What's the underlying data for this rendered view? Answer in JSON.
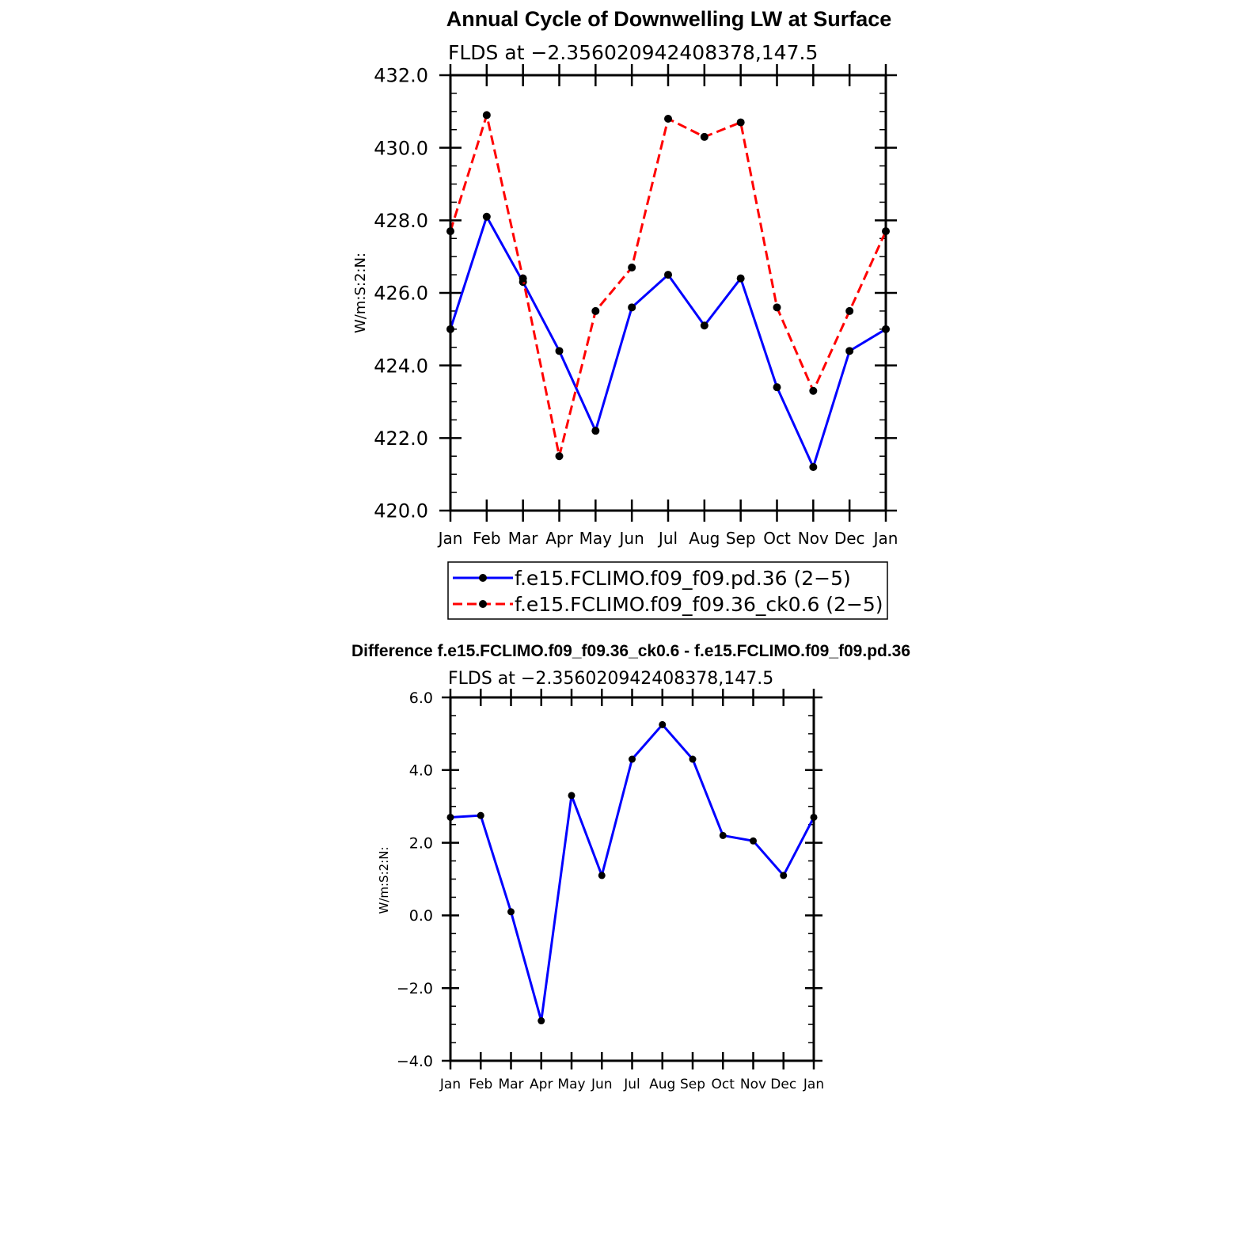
{
  "chart_data": [
    {
      "type": "line",
      "title": "Annual Cycle of Downwelling LW at Surface",
      "subtitle": "FLDS at −2.356020942408378,147.5",
      "xlabel": "",
      "ylabel": "W/m:S:2:N:",
      "categories": [
        "Jan",
        "Feb",
        "Mar",
        "Apr",
        "May",
        "Jun",
        "Jul",
        "Aug",
        "Sep",
        "Oct",
        "Nov",
        "Dec",
        "Jan"
      ],
      "ylim": [
        420.0,
        432.0
      ],
      "yticks": [
        420.0,
        422.0,
        424.0,
        426.0,
        428.0,
        430.0,
        432.0
      ],
      "ytick_labels": [
        "420.0",
        "422.0",
        "424.0",
        "426.0",
        "428.0",
        "430.0",
        "432.0"
      ],
      "legend_position": "below",
      "series": [
        {
          "name": "f.e15.FCLIMO.f09_f09.pd.36 (2−5)",
          "color": "#0000ff",
          "dash": "solid",
          "values": [
            425.0,
            428.1,
            426.3,
            424.4,
            422.2,
            425.6,
            426.5,
            425.1,
            426.4,
            423.4,
            421.2,
            424.4,
            425.0
          ]
        },
        {
          "name": "f.e15.FCLIMO.f09_f09.36_ck0.6 (2−5)",
          "color": "#ff0000",
          "dash": "dashed",
          "values": [
            427.7,
            430.9,
            426.4,
            421.5,
            425.5,
            426.7,
            430.8,
            430.3,
            430.7,
            425.6,
            423.3,
            425.5,
            427.7
          ]
        }
      ]
    },
    {
      "type": "line",
      "title": "Difference f.e15.FCLIMO.f09_f09.36_ck0.6 - f.e15.FCLIMO.f09_f09.pd.36",
      "subtitle": "FLDS at −2.356020942408378,147.5",
      "xlabel": "",
      "ylabel": "W/m:S:2:N:",
      "categories": [
        "Jan",
        "Feb",
        "Mar",
        "Apr",
        "May",
        "Jun",
        "Jul",
        "Aug",
        "Sep",
        "Oct",
        "Nov",
        "Dec",
        "Jan"
      ],
      "ylim": [
        -4.0,
        6.0
      ],
      "yticks": [
        -4.0,
        -2.0,
        0.0,
        2.0,
        4.0,
        6.0
      ],
      "ytick_labels": [
        "−4.0",
        "−2.0",
        "0.0",
        "2.0",
        "4.0",
        "6.0"
      ],
      "series": [
        {
          "color": "#0000ff",
          "dash": "solid",
          "values": [
            2.7,
            2.75,
            0.1,
            -2.9,
            3.3,
            1.1,
            4.3,
            5.25,
            4.3,
            2.2,
            2.05,
            1.1,
            2.7
          ]
        }
      ]
    }
  ]
}
